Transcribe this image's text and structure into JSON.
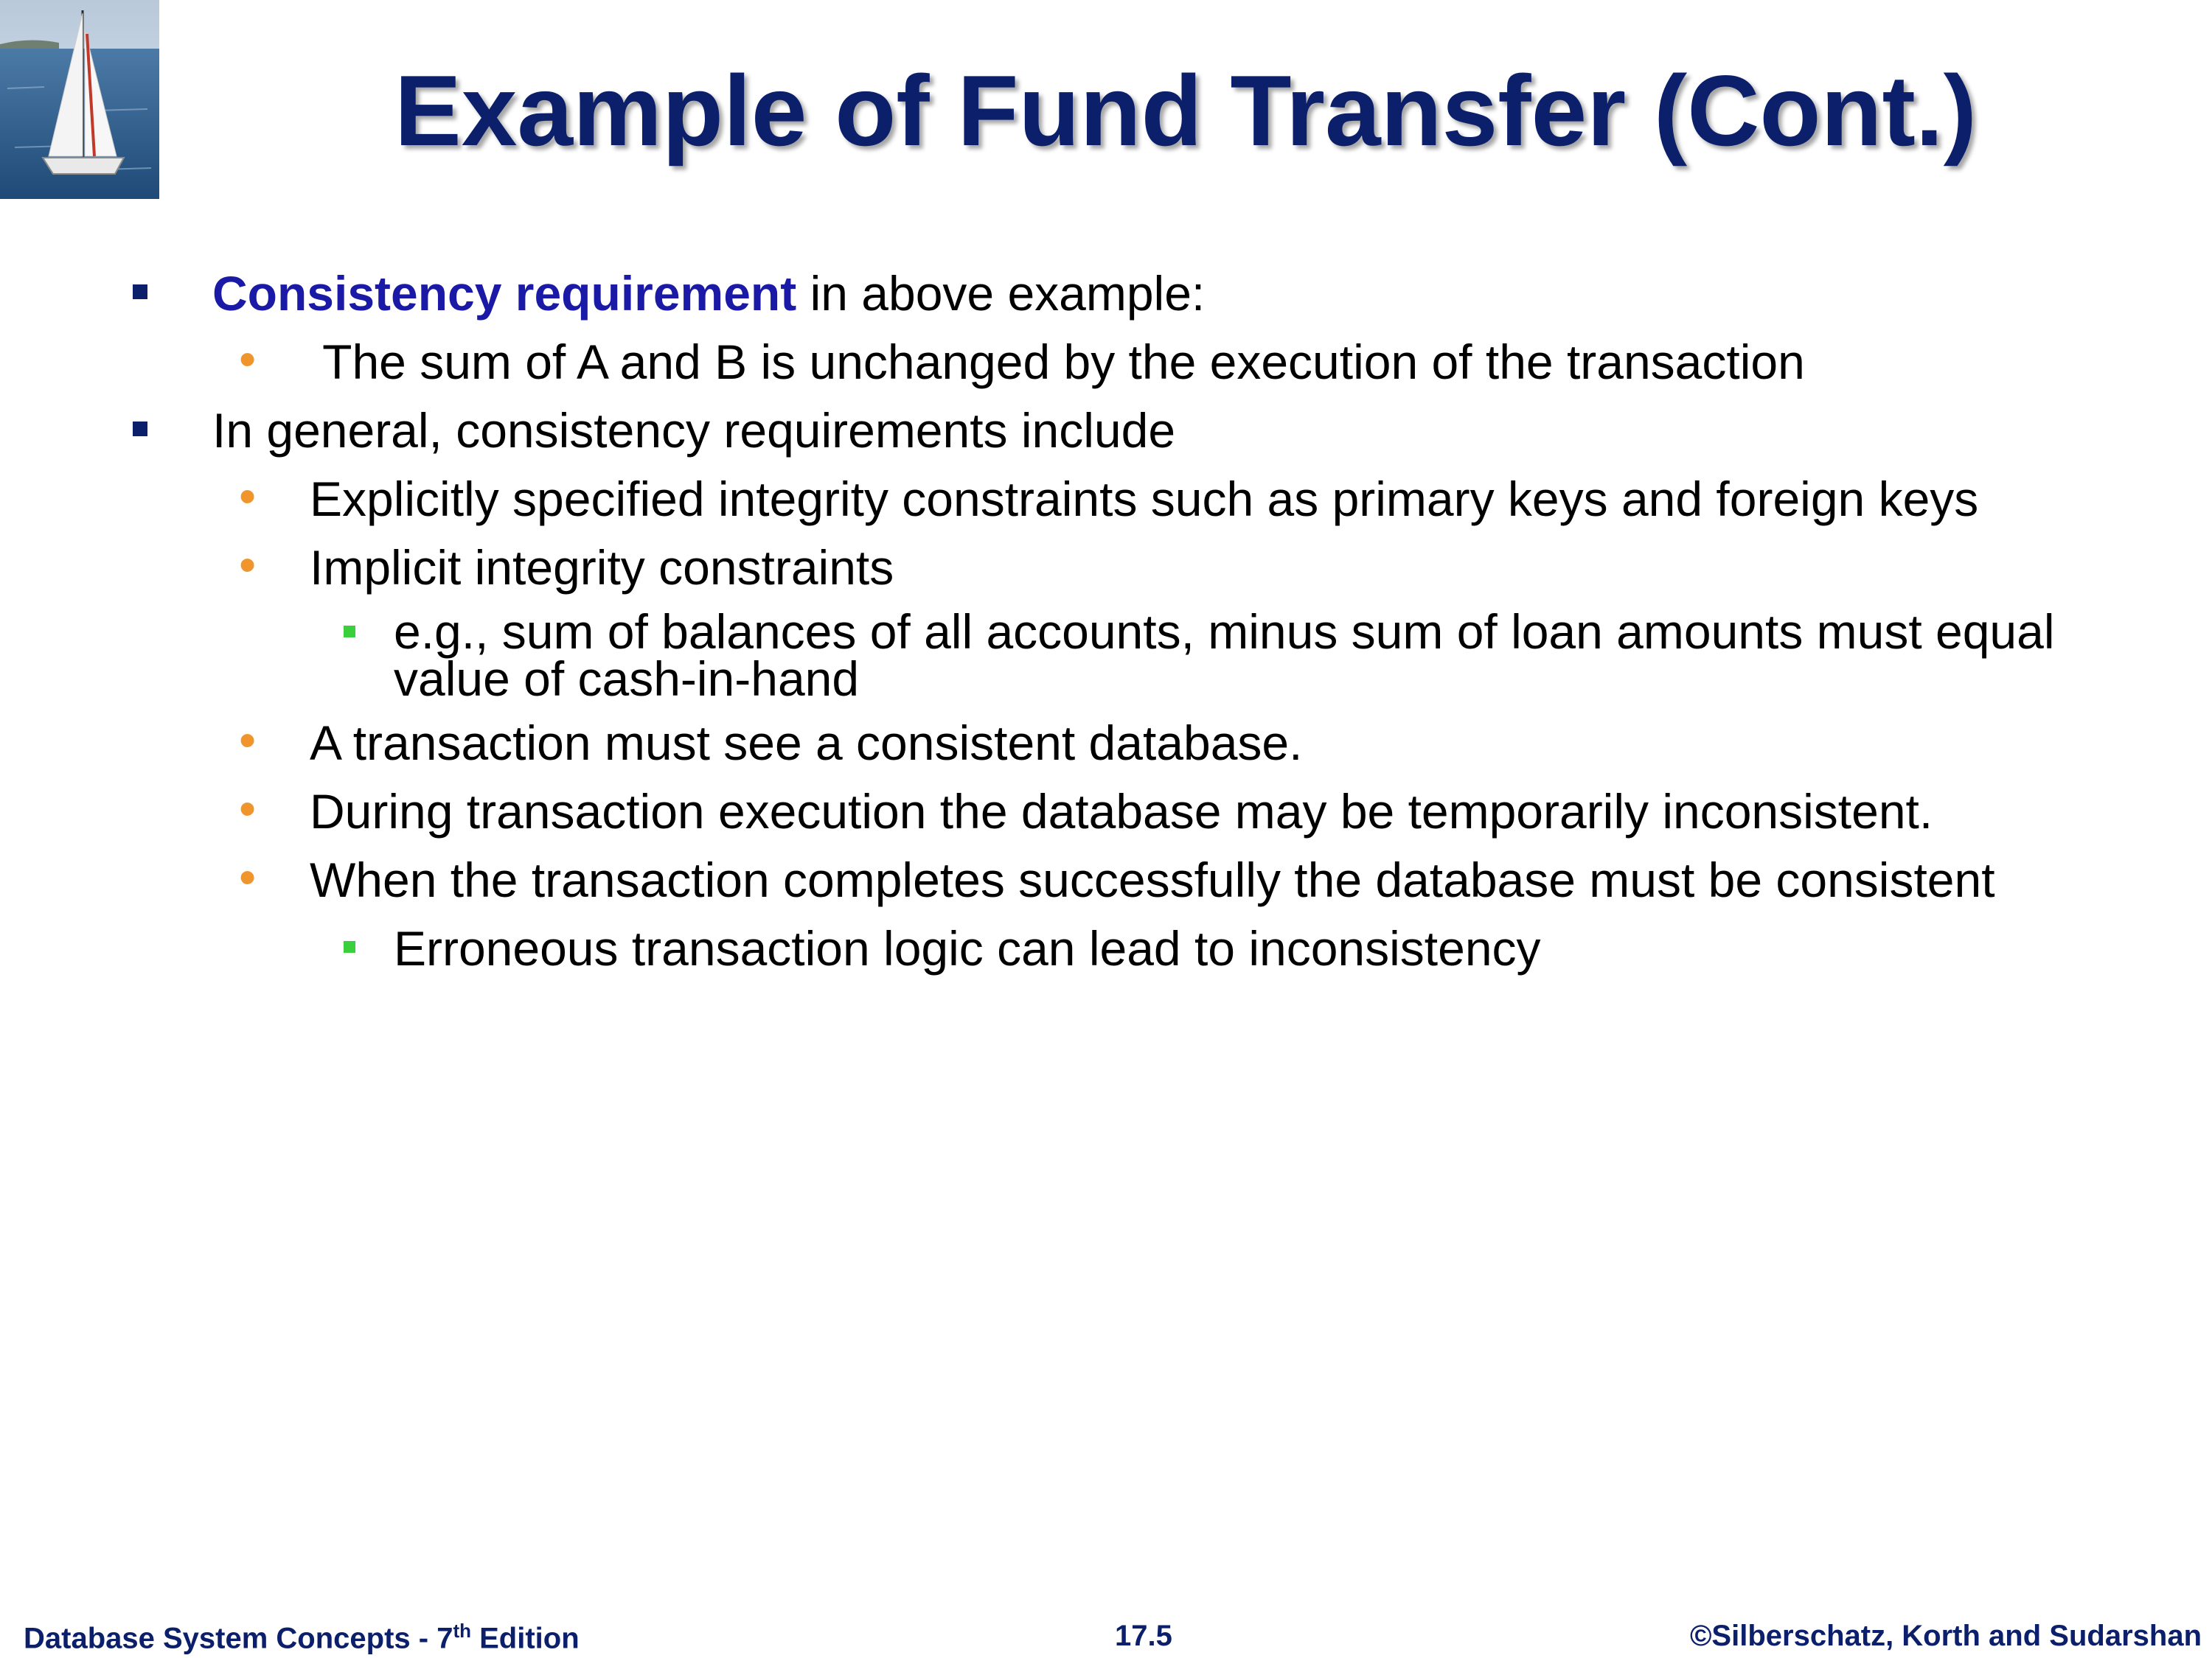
{
  "title": "Example of Fund Transfer (Cont.)",
  "bullets": {
    "b1": {
      "emphasis": "Consistency requirement",
      "text": " in above example:"
    },
    "b1_1": " The sum of A and B is unchanged by the execution of the transaction",
    "b2": "In general, consistency requirements include",
    "b2_1": "Explicitly specified integrity constraints such as primary keys and foreign keys",
    "b2_2": "Implicit integrity constraints",
    "b2_2_1_line1": "e.g., sum of balances of all accounts, minus sum of loan amounts must equal",
    "b2_2_1_line2": "value of cash-in-hand",
    "b2_3": "A transaction must see a consistent database.",
    "b2_4": "During transaction execution the database may be temporarily inconsistent.",
    "b2_5": "When the transaction completes successfully the database must be consistent",
    "b2_5_1": "Erroneous transaction logic can lead to inconsistency"
  },
  "footer": {
    "left_prefix": "Database System Concepts - 7",
    "left_sup": "th",
    "left_suffix": " Edition",
    "center": "17.5",
    "right": "©Silberschatz, Korth and Sudarshan"
  },
  "colors": {
    "title": "#0b1f6b",
    "emphasis": "#1a1aa6",
    "bullet_level1": "#0b1f6b",
    "bullet_level2": "#f0952c",
    "bullet_level3": "#3ccf3c"
  },
  "icons": {
    "logo": "sailboat-icon",
    "bullet_level1": "square",
    "bullet_level2": "dot",
    "bullet_level3": "square"
  }
}
